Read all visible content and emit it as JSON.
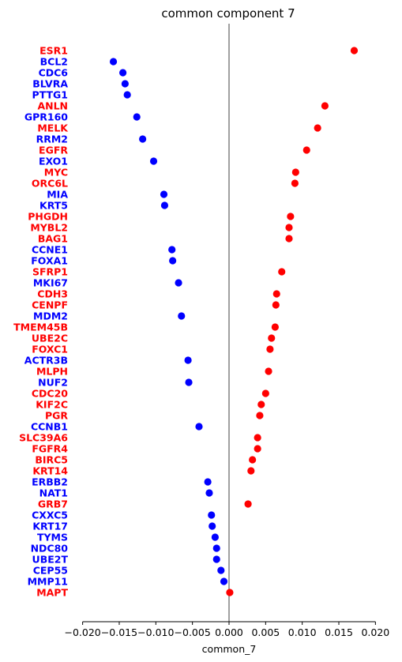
{
  "chart_data": {
    "type": "scatter",
    "title": "common component 7",
    "xlabel": "common_7",
    "ylabel": "",
    "xlim": [
      -0.0205,
      0.0205
    ],
    "xticks": [
      -0.02,
      -0.015,
      -0.01,
      -0.005,
      0.0,
      0.005,
      0.01,
      0.015,
      0.02
    ],
    "xtick_labels": [
      "−0.020",
      "−0.015",
      "−0.010",
      "−0.005",
      "0.000",
      "0.005",
      "0.010",
      "0.015",
      "0.020"
    ],
    "reference_line_x": 0.0,
    "grid": false,
    "colors": {
      "positive": "#ff0000",
      "negative": "#0000ff",
      "reference_line": "#808080"
    },
    "points": [
      {
        "gene": "ESR1",
        "value": 0.0171,
        "color": "#ff0000"
      },
      {
        "gene": "BCL2",
        "value": -0.0158,
        "color": "#0000ff"
      },
      {
        "gene": "CDC6",
        "value": -0.0145,
        "color": "#0000ff"
      },
      {
        "gene": "BLVRA",
        "value": -0.0142,
        "color": "#0000ff"
      },
      {
        "gene": "PTTG1",
        "value": -0.0139,
        "color": "#0000ff"
      },
      {
        "gene": "ANLN",
        "value": 0.0131,
        "color": "#ff0000"
      },
      {
        "gene": "GPR160",
        "value": -0.0126,
        "color": "#0000ff"
      },
      {
        "gene": "MELK",
        "value": 0.0121,
        "color": "#ff0000"
      },
      {
        "gene": "RRM2",
        "value": -0.0118,
        "color": "#0000ff"
      },
      {
        "gene": "EGFR",
        "value": 0.0106,
        "color": "#ff0000"
      },
      {
        "gene": "EXO1",
        "value": -0.0103,
        "color": "#0000ff"
      },
      {
        "gene": "MYC",
        "value": 0.0091,
        "color": "#ff0000"
      },
      {
        "gene": "ORC6L",
        "value": 0.009,
        "color": "#ff0000"
      },
      {
        "gene": "MIA",
        "value": -0.0089,
        "color": "#0000ff"
      },
      {
        "gene": "KRT5",
        "value": -0.0088,
        "color": "#0000ff"
      },
      {
        "gene": "PHGDH",
        "value": 0.0084,
        "color": "#ff0000"
      },
      {
        "gene": "MYBL2",
        "value": 0.0082,
        "color": "#ff0000"
      },
      {
        "gene": "BAG1",
        "value": 0.0082,
        "color": "#ff0000"
      },
      {
        "gene": "CCNE1",
        "value": -0.0078,
        "color": "#0000ff"
      },
      {
        "gene": "FOXA1",
        "value": -0.0077,
        "color": "#0000ff"
      },
      {
        "gene": "SFRP1",
        "value": 0.0072,
        "color": "#ff0000"
      },
      {
        "gene": "MKI67",
        "value": -0.0069,
        "color": "#0000ff"
      },
      {
        "gene": "CDH3",
        "value": 0.0065,
        "color": "#ff0000"
      },
      {
        "gene": "CENPF",
        "value": 0.0064,
        "color": "#ff0000"
      },
      {
        "gene": "MDM2",
        "value": -0.0065,
        "color": "#0000ff"
      },
      {
        "gene": "TMEM45B",
        "value": 0.0063,
        "color": "#ff0000"
      },
      {
        "gene": "UBE2C",
        "value": 0.0058,
        "color": "#ff0000"
      },
      {
        "gene": "FOXC1",
        "value": 0.0056,
        "color": "#ff0000"
      },
      {
        "gene": "ACTR3B",
        "value": -0.0056,
        "color": "#0000ff"
      },
      {
        "gene": "MLPH",
        "value": 0.0054,
        "color": "#ff0000"
      },
      {
        "gene": "NUF2",
        "value": -0.0055,
        "color": "#0000ff"
      },
      {
        "gene": "CDC20",
        "value": 0.005,
        "color": "#ff0000"
      },
      {
        "gene": "KIF2C",
        "value": 0.0044,
        "color": "#ff0000"
      },
      {
        "gene": "PGR",
        "value": 0.0042,
        "color": "#ff0000"
      },
      {
        "gene": "CCNB1",
        "value": -0.0041,
        "color": "#0000ff"
      },
      {
        "gene": "SLC39A6",
        "value": 0.0039,
        "color": "#ff0000"
      },
      {
        "gene": "FGFR4",
        "value": 0.0039,
        "color": "#ff0000"
      },
      {
        "gene": "BIRC5",
        "value": 0.0032,
        "color": "#ff0000"
      },
      {
        "gene": "KRT14",
        "value": 0.003,
        "color": "#ff0000"
      },
      {
        "gene": "ERBB2",
        "value": -0.0029,
        "color": "#0000ff"
      },
      {
        "gene": "NAT1",
        "value": -0.0027,
        "color": "#0000ff"
      },
      {
        "gene": "GRB7",
        "value": 0.0026,
        "color": "#ff0000"
      },
      {
        "gene": "CXXC5",
        "value": -0.0024,
        "color": "#0000ff"
      },
      {
        "gene": "KRT17",
        "value": -0.0023,
        "color": "#0000ff"
      },
      {
        "gene": "TYMS",
        "value": -0.0019,
        "color": "#0000ff"
      },
      {
        "gene": "NDC80",
        "value": -0.0017,
        "color": "#0000ff"
      },
      {
        "gene": "UBE2T",
        "value": -0.0017,
        "color": "#0000ff"
      },
      {
        "gene": "CEP55",
        "value": -0.0011,
        "color": "#0000ff"
      },
      {
        "gene": "MMP11",
        "value": -0.0007,
        "color": "#0000ff"
      },
      {
        "gene": "MAPT",
        "value": 0.0001,
        "color": "#ff0000"
      }
    ]
  }
}
